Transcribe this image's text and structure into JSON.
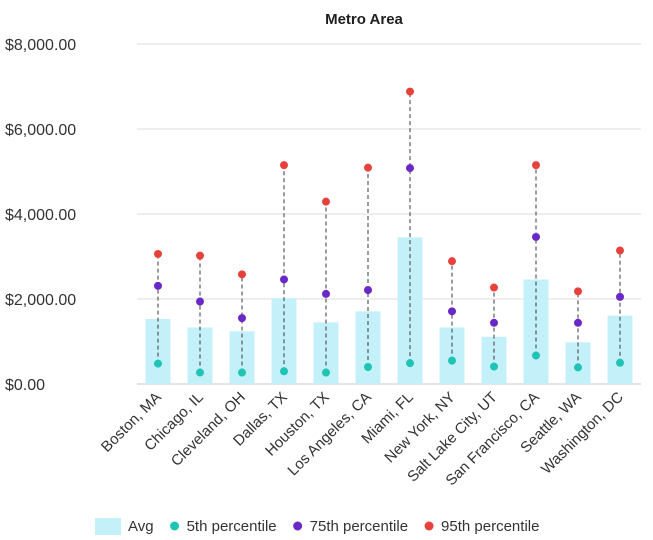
{
  "chart_data": {
    "type": "bar",
    "title": "Metro Area",
    "xlabel": "",
    "ylabel": "",
    "ylim": [
      0,
      8000
    ],
    "y_ticks": [
      {
        "value": 0,
        "label": "$0.00"
      },
      {
        "value": 2000,
        "label": "$2,000.00"
      },
      {
        "value": 4000,
        "label": "$4,000.00"
      },
      {
        "value": 6000,
        "label": "$6,000.00"
      },
      {
        "value": 8000,
        "label": "$8,000.00"
      }
    ],
    "grid": true,
    "legend_position": "bottom",
    "categories": [
      "Boston, MA",
      "Chicago, IL",
      "Cleveland, OH",
      "Dallas, TX",
      "Houston, TX",
      "Los Angeles, CA",
      "Miami, FL",
      "New York, NY",
      "Salt Lake City, UT",
      "San Francisco, CA",
      "Seattle, WA",
      "Washington, DC"
    ],
    "series": [
      {
        "name": "Avg",
        "kind": "bar",
        "color": "#c4f1f9",
        "values": [
          1530,
          1330,
          1240,
          2020,
          1450,
          1710,
          3450,
          1330,
          1110,
          2460,
          980,
          1610
        ]
      },
      {
        "name": "5th percentile",
        "kind": "point",
        "color": "#1fc4b4",
        "values": [
          480,
          270,
          270,
          300,
          270,
          400,
          490,
          550,
          410,
          670,
          390,
          500
        ]
      },
      {
        "name": "75th percentile",
        "kind": "point",
        "color": "#6a28c8",
        "values": [
          2310,
          1940,
          1550,
          2460,
          2120,
          2210,
          5080,
          1710,
          1440,
          3460,
          1440,
          2050
        ]
      },
      {
        "name": "95th percentile",
        "kind": "point",
        "color": "#e8403a",
        "values": [
          3060,
          3020,
          2580,
          5150,
          4290,
          5090,
          6880,
          2890,
          2270,
          5150,
          2180,
          3140
        ]
      }
    ]
  }
}
